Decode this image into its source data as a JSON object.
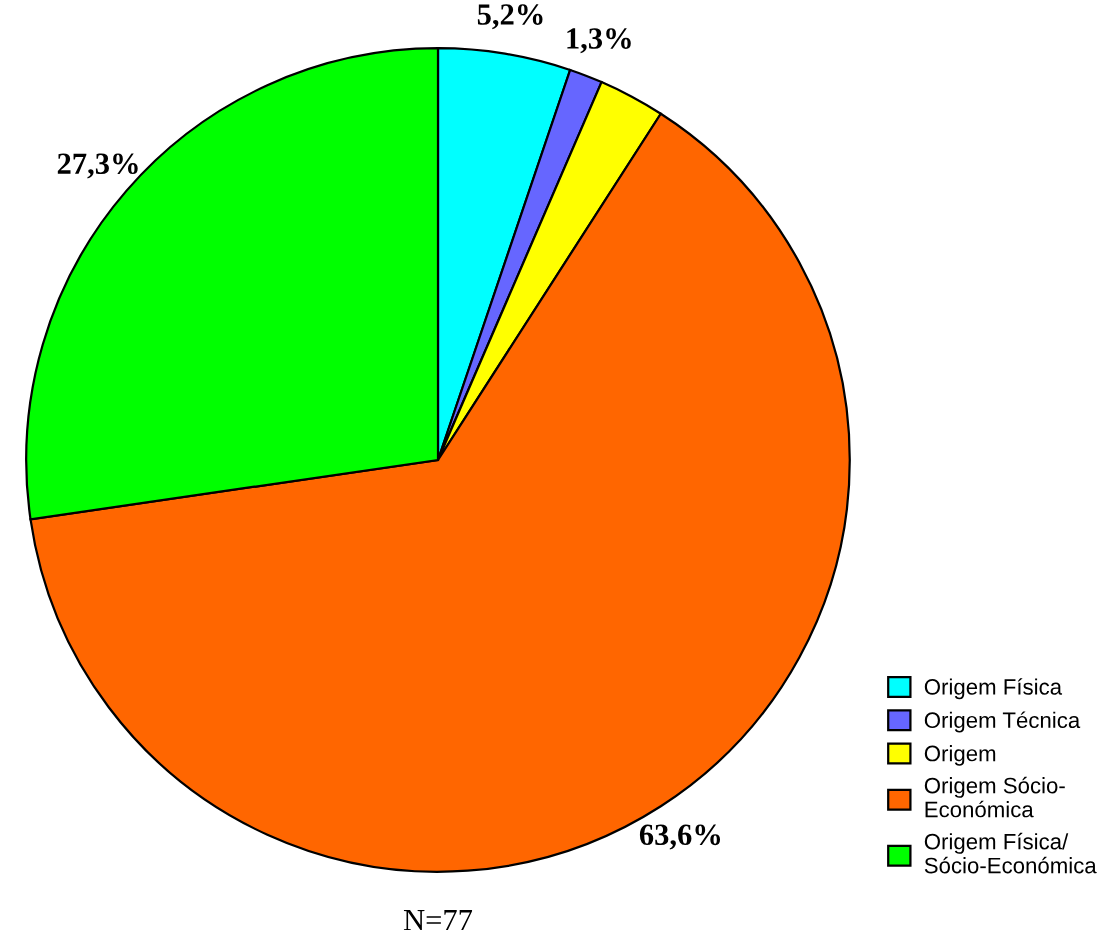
{
  "chart_data": {
    "type": "pie",
    "categories": [
      "Origem Física",
      "Origem Técnica",
      "Origem",
      "Origem Sócio-\nEconómica",
      "Origem Física/\nSócio-Económica"
    ],
    "values": [
      5.2,
      1.3,
      2.6,
      63.6,
      27.3
    ],
    "colors": [
      "#00ffff",
      "#6666ff",
      "#ffff00",
      "#ff6600",
      "#00ff00"
    ],
    "value_labels": [
      "5,2%",
      "1,3%",
      null,
      "63,6%",
      "27,3%"
    ],
    "legend": "bottom right",
    "annotations": [
      "N=77"
    ]
  }
}
